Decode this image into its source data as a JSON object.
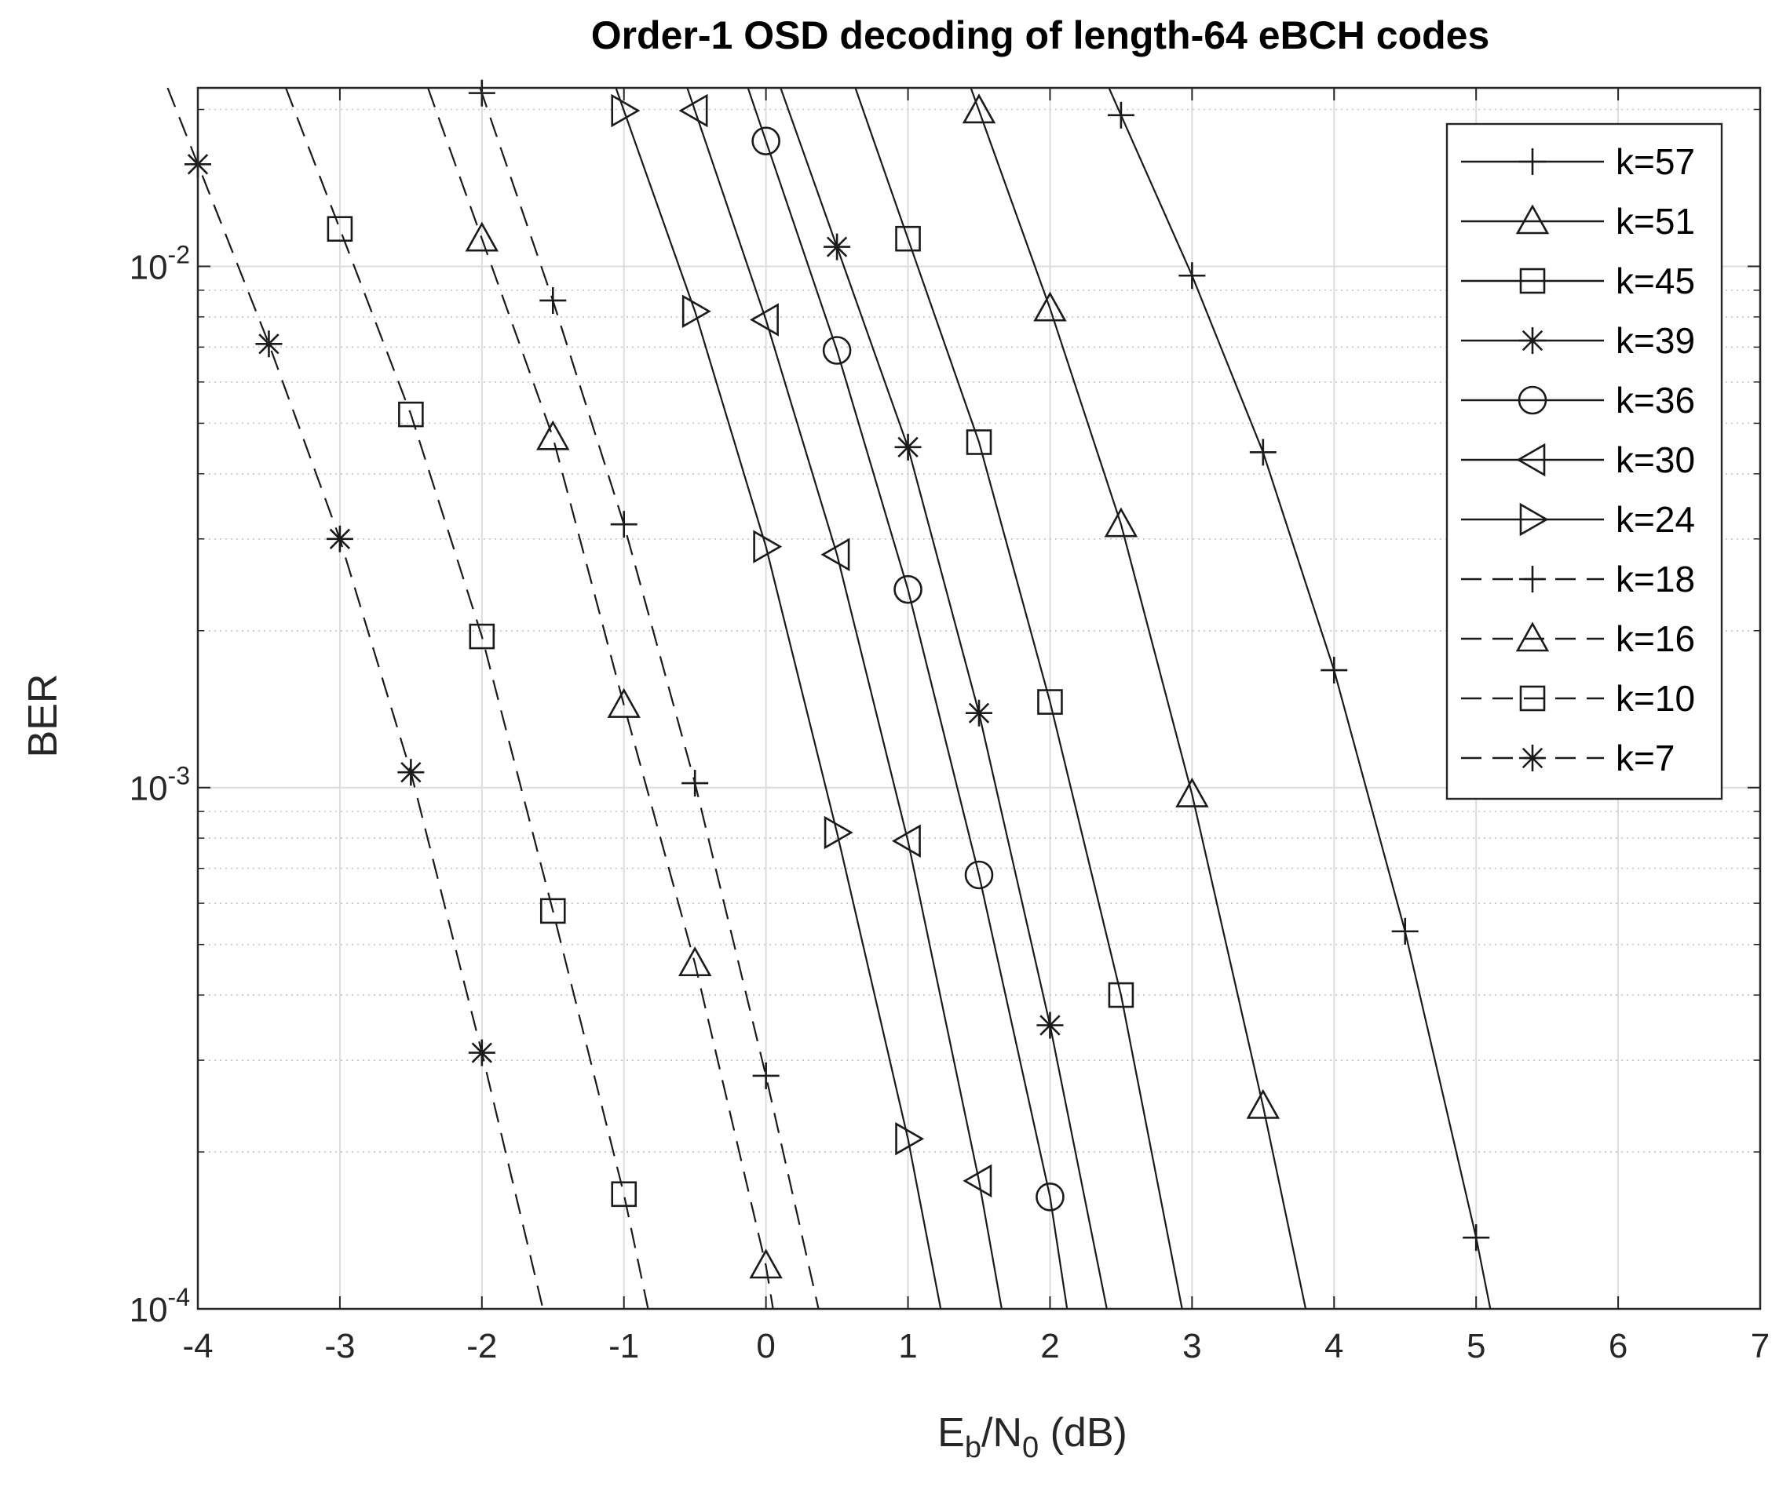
{
  "chart_data": {
    "type": "line",
    "title": "Order-1 OSD decoding of length-64 eBCH codes",
    "xlabel": "E_b/N_0 (dB)",
    "xlabel_parts": {
      "E": "E",
      "b": "b",
      "slash_N": "/N",
      "zero": "0",
      "unit": " (dB)"
    },
    "ylabel": "BER",
    "xlim": [
      -4,
      7
    ],
    "ylim": [
      0.0001,
      0.022
    ],
    "yscale": "log",
    "grid": true,
    "legend_position": "top-right",
    "x_ticks": [
      "-4",
      "-3",
      "-2",
      "-1",
      "0",
      "1",
      "2",
      "3",
      "4",
      "5",
      "6",
      "7"
    ],
    "y_ticks": [
      {
        "base": "10",
        "exp": "-4"
      },
      {
        "base": "10",
        "exp": "-3"
      },
      {
        "base": "10",
        "exp": "-2"
      }
    ],
    "line_color": "#1a1a1a",
    "series": [
      {
        "name": "k=57",
        "marker": "plus",
        "dash": false,
        "x": [
          2.5,
          3.0,
          3.5,
          4.0,
          4.5,
          5.0,
          5.1
        ],
        "y": [
          0.0195,
          0.0096,
          0.0044,
          0.00168,
          0.00053,
          0.000137,
          0.0001
        ]
      },
      {
        "name": "k=51",
        "marker": "triangle-up",
        "dash": false,
        "x": [
          1.5,
          2.0,
          2.5,
          3.0,
          3.5,
          3.8
        ],
        "y": [
          0.0199,
          0.0083,
          0.0032,
          0.00097,
          0.000245,
          0.0001
        ]
      },
      {
        "name": "k=45",
        "marker": "square",
        "dash": false,
        "x": [
          1.0,
          1.5,
          2.0,
          2.5,
          2.93
        ],
        "y": [
          0.0113,
          0.0046,
          0.00146,
          0.0004,
          0.0001
        ]
      },
      {
        "name": "k=39",
        "marker": "star",
        "dash": false,
        "x": [
          0.5,
          1.0,
          1.5,
          2.0,
          2.4
        ],
        "y": [
          0.0109,
          0.0045,
          0.00139,
          0.00035,
          0.0001
        ]
      },
      {
        "name": "k=36",
        "marker": "circle",
        "dash": false,
        "x": [
          0.0,
          0.5,
          1.0,
          1.5,
          2.0,
          2.12
        ],
        "y": [
          0.0174,
          0.0069,
          0.0024,
          0.00068,
          0.000164,
          0.0001
        ]
      },
      {
        "name": "k=30",
        "marker": "triangle-left",
        "dash": false,
        "x": [
          -0.5,
          0.0,
          0.5,
          1.0,
          1.5,
          1.66
        ],
        "y": [
          0.0199,
          0.0079,
          0.0028,
          0.00079,
          0.000176,
          0.0001
        ]
      },
      {
        "name": "k=24",
        "marker": "triangle-right",
        "dash": false,
        "x": [
          -1.0,
          -0.5,
          0.0,
          0.5,
          1.0,
          1.23
        ],
        "y": [
          0.0199,
          0.0082,
          0.0029,
          0.00082,
          0.000212,
          0.0001
        ]
      },
      {
        "name": "k=18",
        "marker": "plus",
        "dash": true,
        "x": [
          -2.0,
          -1.5,
          -1.0,
          -0.5,
          0.0,
          0.37
        ],
        "y": [
          0.0215,
          0.0086,
          0.0032,
          0.00102,
          0.00028,
          0.0001
        ]
      },
      {
        "name": "k=16",
        "marker": "triangle-up",
        "dash": true,
        "x": [
          -2.0,
          -1.5,
          -1.0,
          -0.5,
          0.0,
          0.05
        ],
        "y": [
          0.0113,
          0.0047,
          0.00144,
          0.00046,
          0.000121,
          0.0001
        ]
      },
      {
        "name": "k=10",
        "marker": "square",
        "dash": true,
        "x": [
          -3.0,
          -2.5,
          -2.0,
          -1.5,
          -1.0,
          -0.83
        ],
        "y": [
          0.0118,
          0.0052,
          0.00195,
          0.00058,
          0.000166,
          0.0001
        ]
      },
      {
        "name": "k=7",
        "marker": "star",
        "dash": true,
        "x": [
          -4.0,
          -3.5,
          -3.0,
          -2.5,
          -2.0,
          -1.57
        ],
        "y": [
          0.0157,
          0.0071,
          0.003,
          0.00107,
          0.00031,
          0.0001
        ]
      }
    ]
  }
}
